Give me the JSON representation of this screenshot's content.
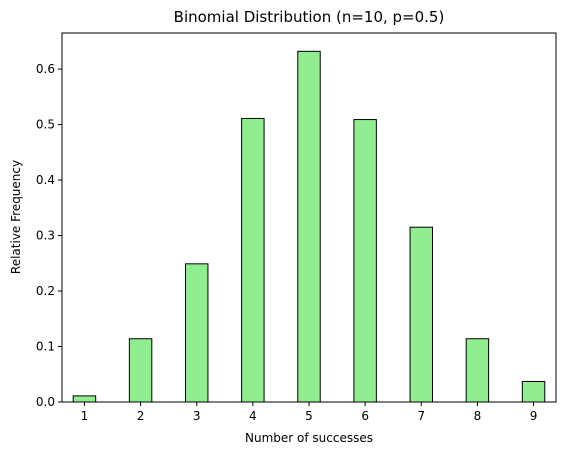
{
  "chart_data": {
    "type": "bar",
    "title": "Binomial Distribution (n=10, p=0.5)",
    "xlabel": "Number of successes",
    "ylabel": "Relative Frequency",
    "xlim": [
      0.6,
      9.4
    ],
    "ylim": [
      0,
      0.665
    ],
    "bar_width": 0.4,
    "x_ticks": [
      "1",
      "2",
      "3",
      "4",
      "5",
      "6",
      "7",
      "8",
      "9"
    ],
    "y_ticks": [
      "0.0",
      "0.1",
      "0.2",
      "0.3",
      "0.4",
      "0.5",
      "0.6"
    ],
    "grid": false,
    "bar_fill": "#90ee90",
    "bar_edge": "#000000",
    "bars": [
      {
        "x": 1,
        "value": 0.011
      },
      {
        "x": 2,
        "value": 0.114
      },
      {
        "x": 3,
        "value": 0.249
      },
      {
        "x": 4,
        "value": 0.511
      },
      {
        "x": 5,
        "value": 0.632
      },
      {
        "x": 6,
        "value": 0.509
      },
      {
        "x": 7,
        "value": 0.315
      },
      {
        "x": 8,
        "value": 0.114
      },
      {
        "x": 9,
        "value": 0.037
      }
    ]
  }
}
